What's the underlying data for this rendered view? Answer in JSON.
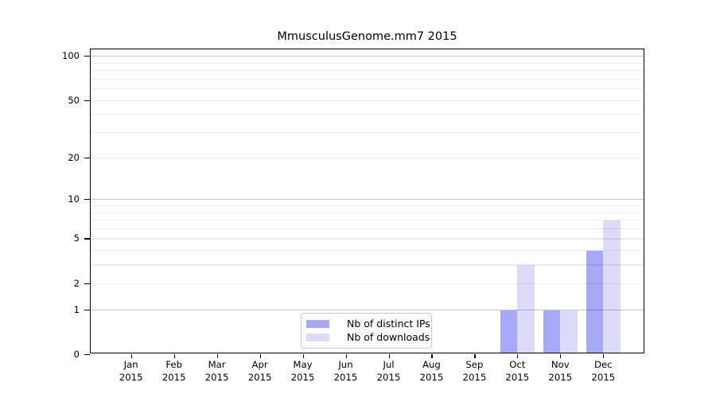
{
  "chart_data": {
    "type": "bar",
    "title": "MmusculusGenome.mm7 2015",
    "categories": [
      "Jan",
      "Feb",
      "Mar",
      "Apr",
      "May",
      "Jun",
      "Jul",
      "Aug",
      "Sep",
      "Oct",
      "Nov",
      "Dec"
    ],
    "x_tick_year": "2015",
    "series": [
      {
        "name": "Nb of distinct IPs",
        "color": "#a8a8f8",
        "values": [
          0,
          0,
          0,
          0,
          0,
          0,
          0,
          0,
          0,
          1,
          1,
          4
        ]
      },
      {
        "name": "Nb of downloads",
        "color": "#dcdcf9",
        "values": [
          0,
          0,
          0,
          0,
          0,
          0,
          0,
          0,
          0,
          3,
          1,
          7
        ]
      }
    ],
    "y_axis": {
      "scale": "log10(1+y)",
      "tick_labels": [
        0,
        1,
        2,
        5,
        10,
        20,
        50,
        100
      ],
      "major_gridlines": [
        1,
        10,
        100
      ],
      "minor_gridlines": [
        2,
        3,
        4,
        5,
        6,
        7,
        8,
        9,
        20,
        30,
        40,
        50,
        60,
        70,
        80,
        90
      ],
      "range": [
        0,
        112
      ]
    },
    "legend": {
      "position": "inside-bottom-center",
      "entries": [
        "Nb of distinct IPs",
        "Nb of downloads"
      ]
    },
    "grid": "horizontal",
    "colors": {
      "background": "#ffffff",
      "spine": "#000000",
      "grid_major": "rgba(0,0,0,0.23)",
      "grid_minor": "rgba(0,0,0,0.08)",
      "legend_border": "#cccccc"
    }
  }
}
